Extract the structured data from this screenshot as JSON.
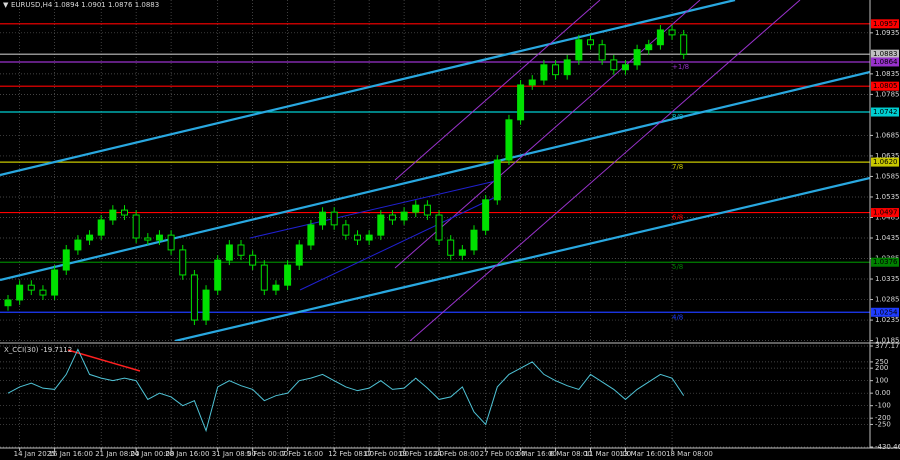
{
  "chart_data": [
    {
      "type": "candlestick",
      "title": "EURUSD,H4 1.0894 1.0901 1.0876 1.0883",
      "categories": [
        null,
        "14 Jan 2025",
        null,
        null,
        "16 Jan 16:00",
        null,
        null,
        null,
        "21 Jan 08:00",
        null,
        null,
        "24 Jan 00:00",
        null,
        null,
        "28 Jan 16:00",
        null,
        null,
        null,
        "31 Jan 08:00",
        null,
        null,
        "5 Feb 00:00",
        null,
        null,
        "7 Feb 16:00",
        null,
        null,
        null,
        "12 Feb 08:00",
        null,
        null,
        "17 Feb 00:00",
        null,
        null,
        "19 Feb 16:00",
        null,
        null,
        "24 Feb 08:00",
        null,
        null,
        null,
        "27 Feb 00:00",
        null,
        null,
        "3 Mar 16:00",
        null,
        null,
        "6 Mar 08:00",
        null,
        null,
        "11 Mar 00:00",
        null,
        null,
        "13 Mar 16:00",
        null,
        null,
        null,
        "18 Mar 08:00",
        null
      ],
      "open": [
        1.027,
        1.0284,
        1.032,
        1.0308,
        1.0296,
        1.0357,
        1.0406,
        1.043,
        1.0442,
        1.0479,
        1.0503,
        1.0491,
        1.0435,
        1.043,
        1.0442,
        1.0406,
        1.0345,
        1.0235,
        1.0308,
        1.0381,
        1.0418,
        1.0393,
        1.0369,
        1.0308,
        1.032,
        1.0369,
        1.0418,
        1.0467,
        1.0498,
        1.0467,
        1.0442,
        1.043,
        1.0442,
        1.0491,
        1.0479,
        1.0498,
        1.0515,
        1.0491,
        1.043,
        1.0393,
        1.0406,
        1.0454,
        1.0528,
        1.0625,
        1.0723,
        1.0808,
        1.082,
        1.0857,
        1.0833,
        1.0869,
        1.0918,
        1.0906,
        1.0869,
        1.0845,
        1.0857,
        1.0894,
        1.0906,
        1.0942,
        1.093
      ],
      "high": [
        1.0296,
        1.0332,
        1.0332,
        1.032,
        1.0369,
        1.0418,
        1.0442,
        1.0454,
        1.0491,
        1.0515,
        1.0515,
        1.0503,
        1.0447,
        1.0454,
        1.0454,
        1.0418,
        1.0357,
        1.032,
        1.0393,
        1.043,
        1.043,
        1.0405,
        1.0381,
        1.0332,
        1.0381,
        1.043,
        1.0479,
        1.051,
        1.051,
        1.0479,
        1.0454,
        1.0454,
        1.0503,
        1.0503,
        1.051,
        1.0527,
        1.0527,
        1.0503,
        1.0442,
        1.0418,
        1.0466,
        1.054,
        1.0637,
        1.0735,
        1.082,
        1.0832,
        1.0869,
        1.0869,
        1.0881,
        1.093,
        1.093,
        1.0918,
        1.0881,
        1.0869,
        1.0906,
        1.0918,
        1.0954,
        1.0954,
        1.0942
      ],
      "low": [
        1.0258,
        1.0272,
        1.0296,
        1.0284,
        1.0284,
        1.0345,
        1.0394,
        1.0418,
        1.043,
        1.0467,
        1.0479,
        1.0423,
        1.0418,
        1.0418,
        1.0394,
        1.0333,
        1.0223,
        1.0223,
        1.0296,
        1.0369,
        1.0381,
        1.0357,
        1.0296,
        1.0296,
        1.0308,
        1.0357,
        1.0406,
        1.0455,
        1.0455,
        1.043,
        1.0418,
        1.0418,
        1.043,
        1.0467,
        1.0467,
        1.0486,
        1.0479,
        1.0418,
        1.0381,
        1.0381,
        1.0394,
        1.0442,
        1.0516,
        1.0613,
        1.0711,
        1.0796,
        1.0808,
        1.0821,
        1.0821,
        1.0857,
        1.0894,
        1.0857,
        1.0833,
        1.0833,
        1.0845,
        1.0882,
        1.0894,
        1.0918,
        1.0871
      ],
      "close": [
        1.0284,
        1.032,
        1.0308,
        1.0296,
        1.0357,
        1.0406,
        1.043,
        1.0442,
        1.0479,
        1.0503,
        1.0491,
        1.0435,
        1.043,
        1.0442,
        1.0406,
        1.0345,
        1.0235,
        1.0308,
        1.0381,
        1.0418,
        1.0393,
        1.0369,
        1.0308,
        1.032,
        1.0369,
        1.0418,
        1.0467,
        1.0498,
        1.0467,
        1.0442,
        1.043,
        1.0442,
        1.0491,
        1.0479,
        1.0498,
        1.0515,
        1.0491,
        1.043,
        1.0393,
        1.0406,
        1.0454,
        1.0528,
        1.0625,
        1.0723,
        1.0808,
        1.082,
        1.0857,
        1.0833,
        1.0869,
        1.0918,
        1.0906,
        1.0869,
        1.0845,
        1.0857,
        1.0894,
        1.0906,
        1.0942,
        1.093,
        1.0883
      ],
      "color": "#00e000",
      "ylim": [
        1.0184,
        1.1015
      ],
      "yticks": [
        1.0185,
        1.0235,
        1.0285,
        1.0335,
        1.0385,
        1.0435,
        1.0485,
        1.0535,
        1.0585,
        1.0635,
        1.0685,
        1.0785,
        1.0835,
        1.0935
      ],
      "grid": true,
      "levels": [
        {
          "value": 1.0957,
          "label": "1.0957",
          "color": "#ff0000"
        },
        {
          "value": 1.0883,
          "label": "1.0883",
          "color": "#c0c0c0"
        },
        {
          "value": 1.0864,
          "label": "1.0864",
          "color": "#9932cc",
          "tag": "+1/8"
        },
        {
          "value": 1.0805,
          "label": "1.0805",
          "color": "#ff0000"
        },
        {
          "value": 1.0742,
          "label": "1.0742",
          "color": "#00ced1",
          "tag": "8/8"
        },
        {
          "value": 1.062,
          "label": "1.0620",
          "color": "#c8c800",
          "tag": "7/8"
        },
        {
          "value": 1.0497,
          "label": "1.0497",
          "color": "#ff0000",
          "tag": "6/8"
        },
        {
          "value": 1.0376,
          "label": "1.0376",
          "color": "#008000",
          "tag": "5/8"
        },
        {
          "value": 1.0254,
          "label": "1.0254",
          "color": "#1e3cff",
          "tag": "4/8"
        }
      ]
    },
    {
      "type": "line",
      "title": "X_CCI(30) -19.7112",
      "series": [
        {
          "color": "#4fc3d6",
          "values": [
            0,
            50,
            80,
            40,
            30,
            150,
            350,
            150,
            120,
            100,
            120,
            100,
            -50,
            0,
            -30,
            -100,
            -60,
            -300,
            50,
            100,
            60,
            30,
            -60,
            -20,
            0,
            100,
            120,
            150,
            100,
            50,
            20,
            40,
            100,
            30,
            40,
            120,
            40,
            -50,
            -30,
            50,
            -150,
            -250,
            50,
            150,
            200,
            250,
            150,
            100,
            60,
            30,
            150,
            90,
            30,
            -50,
            30,
            90,
            150,
            120,
            -19.7112
          ]
        }
      ],
      "ylim": [
        -430.4654,
        377.1776
      ],
      "yticks": [
        377.1776,
        250,
        200,
        100,
        {
          "value": 0,
          "label": "0.00"
        },
        -100,
        -200,
        -250,
        -430.4654
      ],
      "grid": true
    }
  ]
}
